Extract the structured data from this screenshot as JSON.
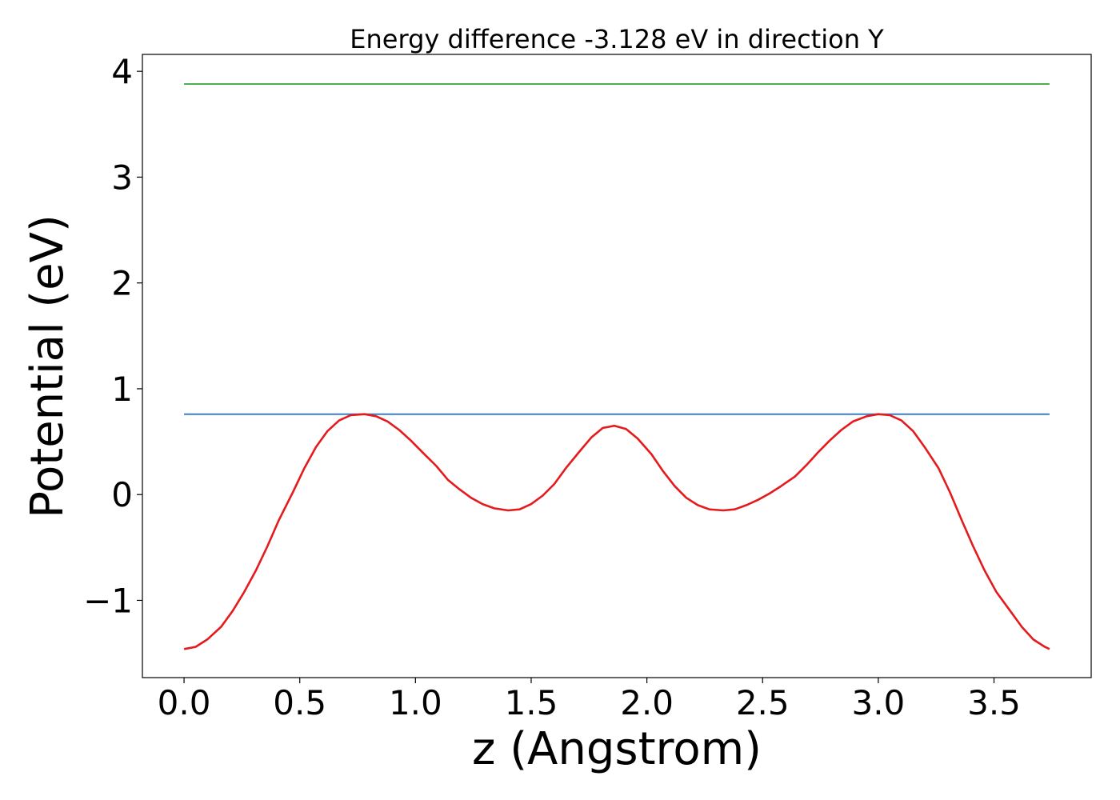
{
  "chart_data": {
    "type": "line",
    "title": "Energy difference -3.128 eV in direction Y",
    "xlabel": "z (Angstrom)",
    "ylabel": "Potential (eV)",
    "xlim": [
      -0.18,
      3.92
    ],
    "ylim": [
      -1.73,
      4.16
    ],
    "xticks": [
      0.0,
      0.5,
      1.0,
      1.5,
      2.0,
      2.5,
      3.0,
      3.5
    ],
    "xtick_labels": [
      "0.0",
      "0.5",
      "1.0",
      "1.5",
      "2.0",
      "2.5",
      "3.0",
      "3.5"
    ],
    "yticks": [
      -1,
      0,
      1,
      2,
      3,
      4
    ],
    "ytick_labels": [
      "−1",
      "0",
      "1",
      "2",
      "3",
      "4"
    ],
    "grid": false,
    "series": [
      {
        "color": "#4caf50",
        "x": [
          0.0,
          3.74
        ],
        "y": [
          3.88,
          3.88
        ]
      },
      {
        "color": "#3a7fc4",
        "x": [
          0.0,
          3.74
        ],
        "y": [
          0.76,
          0.76
        ]
      },
      {
        "color": "#e41a1c",
        "x": [
          0.0,
          0.05,
          0.1,
          0.16,
          0.21,
          0.26,
          0.31,
          0.36,
          0.41,
          0.47,
          0.52,
          0.57,
          0.62,
          0.67,
          0.72,
          0.78,
          0.83,
          0.88,
          0.93,
          0.98,
          1.03,
          1.09,
          1.14,
          1.19,
          1.24,
          1.29,
          1.34,
          1.4,
          1.45,
          1.5,
          1.55,
          1.6,
          1.65,
          1.71,
          1.76,
          1.81,
          1.86,
          1.91,
          1.96,
          2.02,
          2.07,
          2.12,
          2.17,
          2.22,
          2.27,
          2.33,
          2.38,
          2.43,
          2.48,
          2.53,
          2.58,
          2.64,
          2.69,
          2.74,
          2.79,
          2.84,
          2.89,
          2.95,
          3.0,
          3.05,
          3.1,
          3.15,
          3.2,
          3.26,
          3.31,
          3.36,
          3.41,
          3.46,
          3.51,
          3.57,
          3.62,
          3.67,
          3.72,
          3.74
        ],
        "y": [
          -1.46,
          -1.44,
          -1.37,
          -1.25,
          -1.1,
          -0.92,
          -0.72,
          -0.49,
          -0.24,
          0.02,
          0.25,
          0.45,
          0.6,
          0.7,
          0.75,
          0.76,
          0.74,
          0.69,
          0.61,
          0.51,
          0.4,
          0.27,
          0.14,
          0.05,
          -0.03,
          -0.09,
          -0.13,
          -0.15,
          -0.14,
          -0.09,
          -0.01,
          0.1,
          0.25,
          0.41,
          0.54,
          0.63,
          0.65,
          0.62,
          0.53,
          0.38,
          0.22,
          0.08,
          -0.03,
          -0.1,
          -0.14,
          -0.15,
          -0.14,
          -0.1,
          -0.05,
          0.01,
          0.08,
          0.17,
          0.28,
          0.4,
          0.51,
          0.61,
          0.69,
          0.74,
          0.76,
          0.75,
          0.7,
          0.6,
          0.45,
          0.25,
          0.02,
          -0.24,
          -0.49,
          -0.72,
          -0.92,
          -1.1,
          -1.25,
          -1.37,
          -1.44,
          -1.46
        ]
      }
    ]
  }
}
